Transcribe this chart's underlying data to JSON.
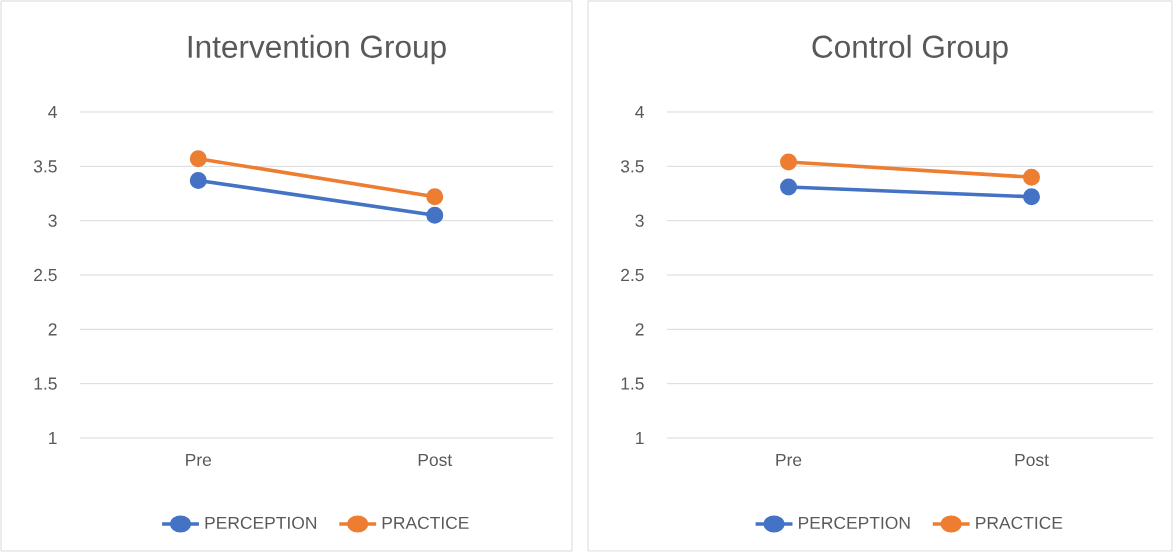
{
  "chart_data": [
    {
      "type": "line",
      "title": "Intervention Group",
      "categories": [
        "Pre",
        "Post"
      ],
      "series": [
        {
          "name": "PERCEPTION",
          "color": "#4472c4",
          "values": [
            3.37,
            3.05
          ]
        },
        {
          "name": "PRACTICE",
          "color": "#ed7d31",
          "values": [
            3.57,
            3.22
          ]
        }
      ],
      "ylim": [
        1,
        4
      ],
      "yticks": [
        1,
        1.5,
        2,
        2.5,
        3,
        3.5,
        4
      ],
      "grid": "y",
      "legend": "bottom",
      "marker": "circle",
      "line_style": "solid"
    },
    {
      "type": "line",
      "title": "Control Group",
      "categories": [
        "Pre",
        "Post"
      ],
      "series": [
        {
          "name": "PERCEPTION",
          "color": "#4472c4",
          "values": [
            3.31,
            3.22
          ]
        },
        {
          "name": "PRACTICE",
          "color": "#ed7d31",
          "values": [
            3.54,
            3.4
          ]
        }
      ],
      "ylim": [
        1,
        4
      ],
      "yticks": [
        1,
        1.5,
        2,
        2.5,
        3,
        3.5,
        4
      ],
      "grid": "y",
      "legend": "bottom",
      "marker": "circle",
      "line_style": "solid"
    }
  ]
}
